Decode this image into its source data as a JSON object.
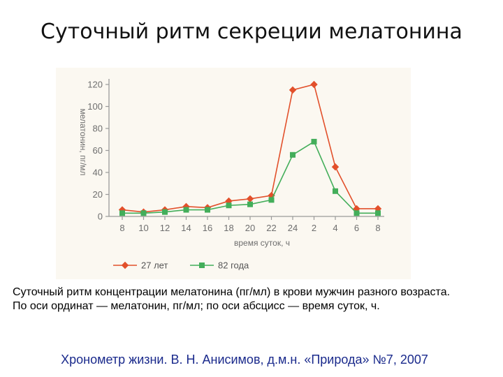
{
  "slide": {
    "title": "Суточный ритм секреции мелатонина",
    "caption_line1": "Суточный ритм концентрации мелатонина (пг/мл) в крови мужчин разного возраста.",
    "caption_line2": "По оси ординат — мелатонин, пг/мл; по оси абсцисс — время суток, ч.",
    "source": "Хронометр жизни. В. Н. Анисимов, д.м.н. «Природа» №7, 2007"
  },
  "chart_data": {
    "type": "line",
    "x": [
      "8",
      "10",
      "12",
      "14",
      "16",
      "18",
      "20",
      "22",
      "24",
      "2",
      "4",
      "6",
      "8"
    ],
    "series": [
      {
        "name": "27 лет",
        "color": "#e2502b",
        "marker": "diamond",
        "values": [
          6,
          4,
          6,
          9,
          8,
          14,
          16,
          19,
          115,
          120,
          45,
          7,
          7
        ]
      },
      {
        "name": "82 года",
        "color": "#43ae5a",
        "marker": "square",
        "values": [
          3,
          3,
          4,
          6,
          6,
          10,
          11,
          15,
          56,
          68,
          23,
          3,
          3
        ]
      }
    ],
    "xlabel": "время суток, ч",
    "ylabel": "мелатонин, пг/мл",
    "ylim": [
      0,
      120
    ],
    "yticks": [
      0,
      20,
      40,
      60,
      80,
      100,
      120
    ],
    "grid": false,
    "legend": "bottom",
    "axis_color": "#9a9a9a"
  }
}
